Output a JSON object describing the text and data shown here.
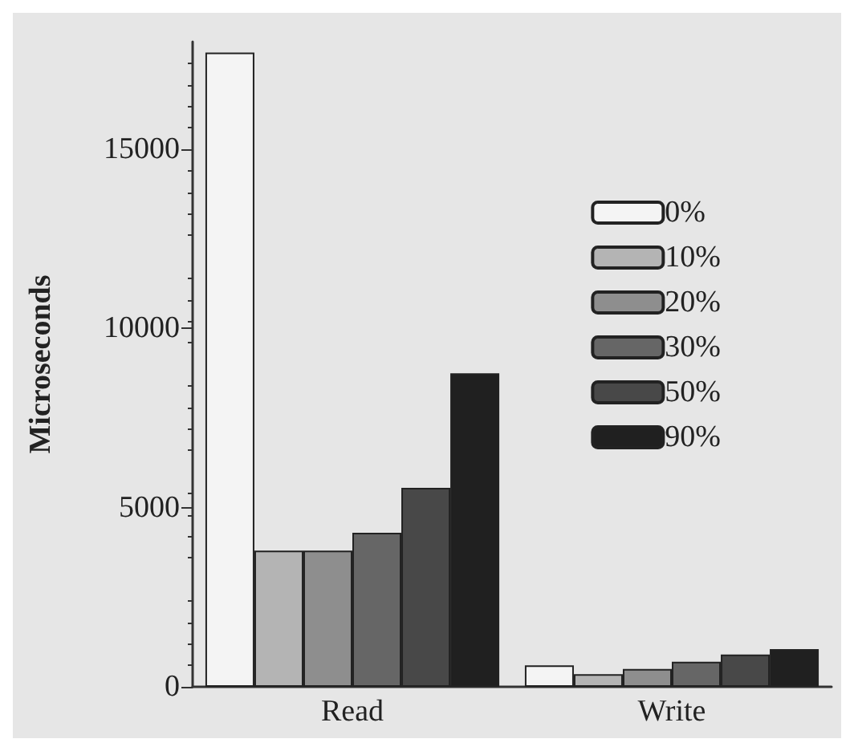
{
  "chart_data": {
    "type": "bar",
    "ylabel": "Microseconds",
    "categories": [
      "Read",
      "Write"
    ],
    "series": [
      {
        "name": "0%",
        "color": "#f4f4f4",
        "values": [
          17700,
          600
        ]
      },
      {
        "name": "10%",
        "color": "#b4b4b4",
        "values": [
          3800,
          350
        ]
      },
      {
        "name": "20%",
        "color": "#8e8e8e",
        "values": [
          3800,
          500
        ]
      },
      {
        "name": "30%",
        "color": "#666666",
        "values": [
          4300,
          700
        ]
      },
      {
        "name": "50%",
        "color": "#484848",
        "values": [
          5550,
          900
        ]
      },
      {
        "name": "90%",
        "color": "#202020",
        "values": [
          8750,
          1050
        ]
      }
    ],
    "ylim": [
      0,
      18000
    ],
    "yticks": [
      0,
      5000,
      10000,
      15000
    ],
    "grid": false,
    "legend": "right"
  }
}
